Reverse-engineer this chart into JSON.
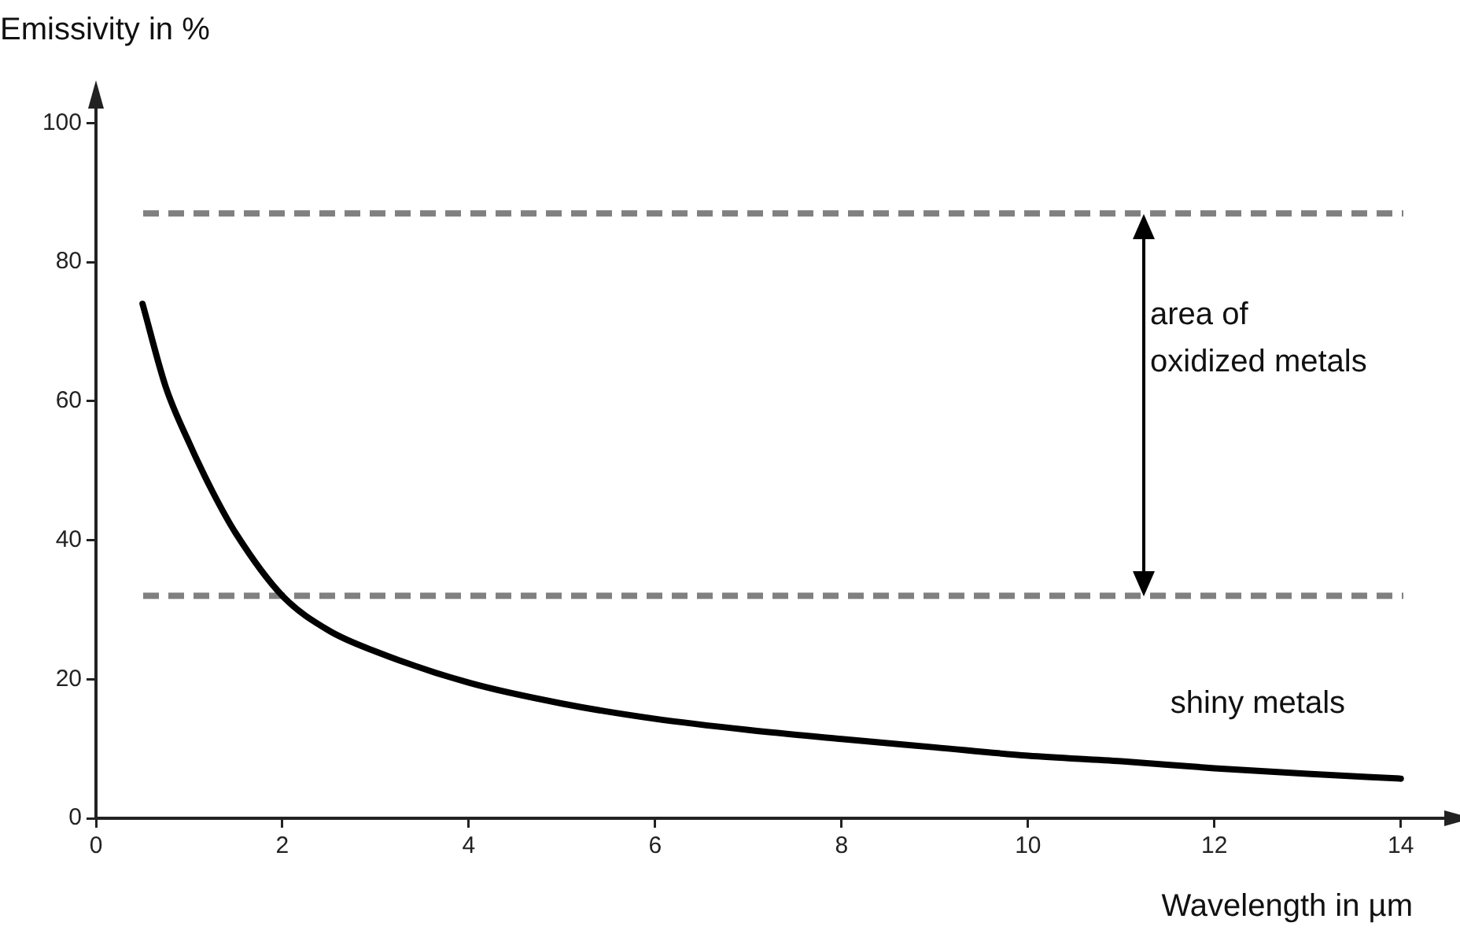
{
  "chart_data": {
    "type": "line",
    "xlabel": "Wavelength in µm",
    "ylabel": "Emissivity in %",
    "series": [
      {
        "color": "#000000",
        "x": [
          0.5,
          0.75,
          1,
          1.25,
          1.5,
          2,
          2.5,
          3,
          4,
          5,
          6,
          7,
          8,
          9,
          10,
          11,
          12,
          13,
          14
        ],
        "values": [
          74,
          62,
          54,
          47,
          41,
          32,
          27,
          24,
          19.5,
          16.5,
          14.3,
          12.7,
          11.4,
          10.2,
          9,
          8.2,
          7.2,
          6.4,
          5.7
        ]
      }
    ],
    "xlim": [
      0,
      14.5
    ],
    "xticks": [
      0,
      2,
      4,
      6,
      8,
      10,
      12,
      14
    ],
    "ylim": [
      0,
      103
    ],
    "yticks": [
      0,
      20,
      40,
      60,
      80,
      100
    ],
    "grid": false,
    "legend": false,
    "marker": "none",
    "line_style": "solid",
    "ref_lines": [
      {
        "axis": "y",
        "value": 87,
        "color": "#808080",
        "line_style": "dashed"
      },
      {
        "axis": "y",
        "value": 32,
        "color": "#808080",
        "line_style": "dashed"
      }
    ],
    "annotations": [
      "area of oxidized metals",
      "shiny metals"
    ]
  }
}
